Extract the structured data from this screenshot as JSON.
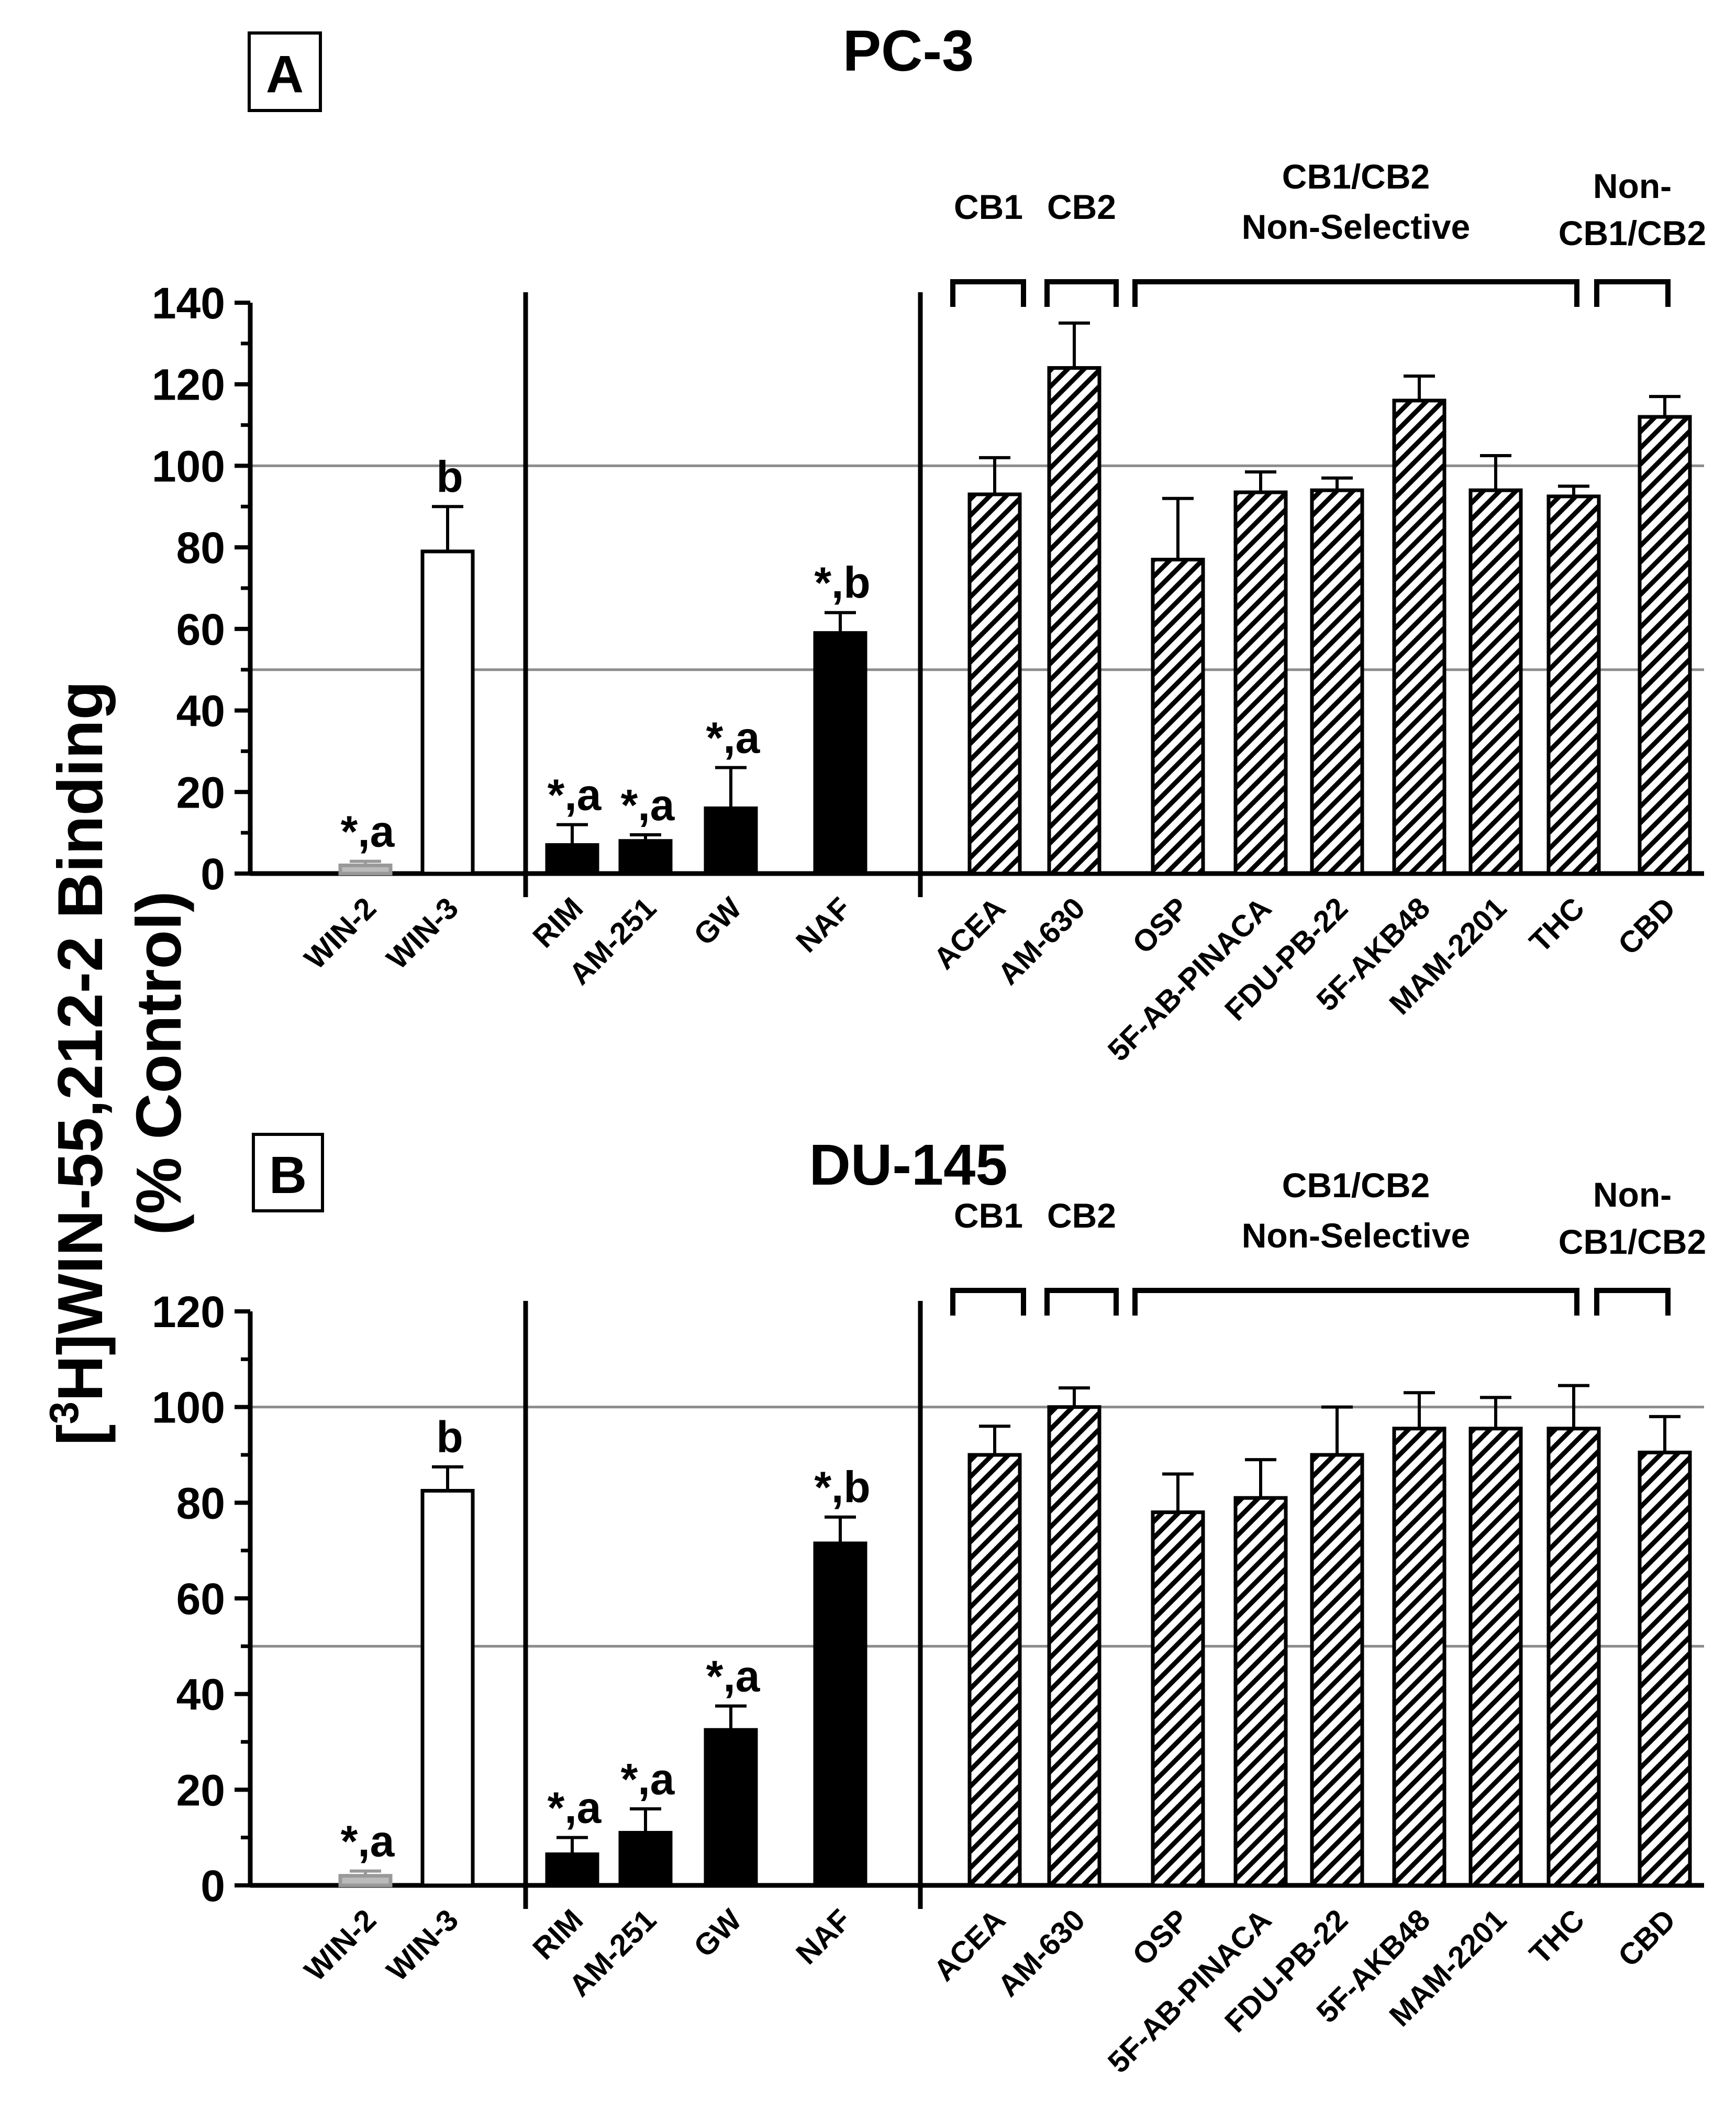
{
  "y_axis_title_line1_pre": "[",
  "y_axis_title_sup": "3",
  "y_axis_title_line1_post": "H]WIN-55,212-2 Binding",
  "y_axis_title_line2": "(% Control)",
  "group_labels": {
    "cb1": "CB1",
    "cb2": "CB2",
    "nonselective_line1": "CB1/CB2",
    "nonselective_line2": "Non-Selective",
    "noncb_line1": "Non-",
    "noncb_line2": "CB1/CB2"
  },
  "colors": {
    "white_bar": "#ffffff",
    "black_bar": "#000000",
    "hatch": "#000000",
    "gray_ref": "#8c8c8c",
    "error_gray": "#999999"
  },
  "chart_data": [
    {
      "panel": "A",
      "title": "PC-3",
      "type": "bar",
      "ylim": [
        0,
        140
      ],
      "yticks": [
        0,
        20,
        40,
        60,
        80,
        100,
        120,
        140
      ],
      "reference_lines": [
        50,
        100
      ],
      "categories": [
        "WIN-2",
        "WIN-3",
        "RIM",
        "AM-251",
        "GW",
        "NAF",
        "ACEA",
        "AM-630",
        "OSP",
        "5F-AB-PINACA",
        "FDU-PB-22",
        "5F-AKB48",
        "MAM-2201",
        "THC",
        "CBD"
      ],
      "values": [
        2,
        79,
        7,
        8,
        16,
        59,
        93,
        124,
        77,
        93.5,
        94,
        116,
        94,
        92.5,
        112
      ],
      "errors": [
        1,
        11,
        5,
        1.5,
        10,
        5,
        9,
        11,
        15,
        5,
        3,
        6,
        8.5,
        2.5,
        5
      ],
      "styles": [
        "gray",
        "white",
        "black",
        "black",
        "black",
        "black",
        "hatch",
        "hatch",
        "hatch",
        "hatch",
        "hatch",
        "hatch",
        "hatch",
        "hatch",
        "hatch"
      ],
      "annotations": [
        "*,a",
        "b",
        "*,a",
        "*,a",
        "*,a",
        "*,b",
        "",
        "",
        "",
        "",
        "",
        "",
        "",
        "",
        ""
      ]
    },
    {
      "panel": "B",
      "title": "DU-145",
      "type": "bar",
      "ylim": [
        0,
        120
      ],
      "yticks": [
        0,
        20,
        40,
        60,
        80,
        100,
        120
      ],
      "reference_lines": [
        50,
        100
      ],
      "categories": [
        "WIN-2",
        "WIN-3",
        "RIM",
        "AM-251",
        "GW",
        "NAF",
        "ACEA",
        "AM-630",
        "OSP",
        "5F-AB-PINACA",
        "FDU-PB-22",
        "5F-AKB48",
        "MAM-2201",
        "THC",
        "CBD"
      ],
      "values": [
        2,
        82.5,
        6.5,
        11,
        32.5,
        71.5,
        90,
        100,
        78,
        81,
        90,
        95.5,
        95.5,
        95.5,
        90.5
      ],
      "errors": [
        1,
        5,
        3.5,
        5,
        5,
        5.5,
        6,
        4,
        8,
        8,
        10,
        7.5,
        6.5,
        9,
        7.5
      ],
      "styles": [
        "gray",
        "white",
        "black",
        "black",
        "black",
        "black",
        "hatch",
        "hatch",
        "hatch",
        "hatch",
        "hatch",
        "hatch",
        "hatch",
        "hatch",
        "hatch"
      ],
      "annotations": [
        "*,a",
        "b",
        "*,a",
        "*,a",
        "*,a",
        "*,b",
        "",
        "",
        "",
        "",
        "",
        "",
        "",
        "",
        ""
      ]
    }
  ]
}
